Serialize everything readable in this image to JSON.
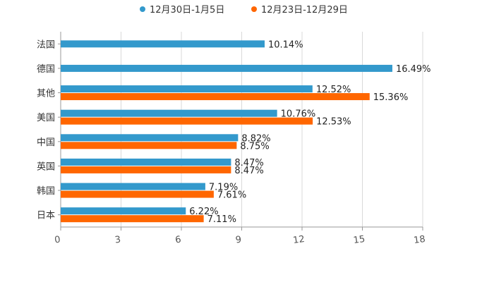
{
  "chart_data": {
    "type": "bar",
    "orientation": "horizontal",
    "title": "",
    "xlabel": "",
    "ylabel": "",
    "xlim": [
      0,
      18
    ],
    "xticks": [
      "0",
      "3",
      "6",
      "9",
      "12",
      "15",
      "18"
    ],
    "grid": true,
    "legend_position": "top-center",
    "categories": [
      "法国",
      "德国",
      "其他",
      "美国",
      "中国",
      "英国",
      "韩国",
      "日本"
    ],
    "series": [
      {
        "name": "12月30日-1月5日",
        "color": "#3399cc",
        "values": [
          10.14,
          16.49,
          12.52,
          10.76,
          8.82,
          8.47,
          7.19,
          6.22
        ],
        "labels": [
          "10.14%",
          "16.49%",
          "12.52%",
          "10.76%",
          "8.82%",
          "8.47%",
          "7.19%",
          "6.22%"
        ]
      },
      {
        "name": "12月23日-12月29日",
        "color": "#ff6600",
        "values": [
          null,
          null,
          15.36,
          12.53,
          8.75,
          8.47,
          7.61,
          7.11
        ],
        "labels": [
          null,
          null,
          "15.36%",
          "12.53%",
          "8.75%",
          "8.47%",
          "7.61%",
          "7.11%"
        ]
      }
    ]
  }
}
